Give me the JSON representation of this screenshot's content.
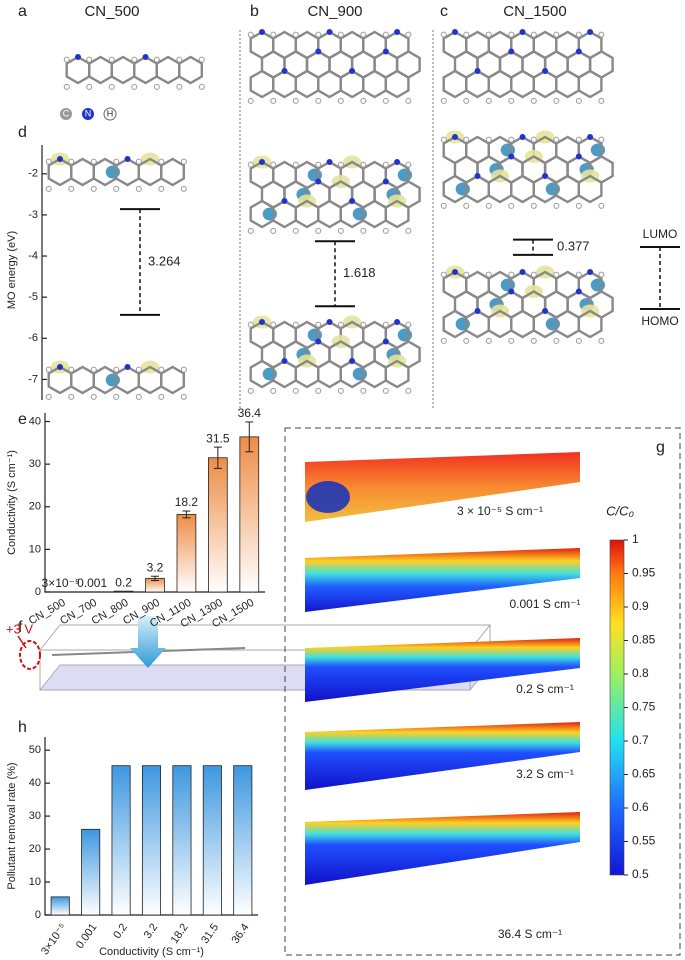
{
  "panels": {
    "a": {
      "label": "a",
      "title": "CN_500"
    },
    "b": {
      "label": "b",
      "title": "CN_900"
    },
    "c": {
      "label": "c",
      "title": "CN_1500"
    },
    "f": {
      "label": "f",
      "annotation": "+3 V"
    },
    "g": {
      "label": "g",
      "captions": [
        "3 × 10⁻⁵ S cm⁻¹",
        "0.001 S cm⁻¹",
        "0.2 S cm⁻¹",
        "3.2 S cm⁻¹",
        "36.4 S cm⁻¹"
      ]
    }
  },
  "atom_legend": [
    "C",
    "N",
    "H"
  ],
  "chart_data": [
    {
      "type": "levels",
      "label": "d",
      "ylabel": "MO energy (eV)",
      "ylim": [
        -7.5,
        -1.3
      ],
      "yticks": [
        -2,
        -3,
        -4,
        -5,
        -6,
        -7
      ],
      "systems": [
        {
          "lumo": -2.86,
          "homo": -5.43,
          "gap": 3.264
        },
        {
          "lumo": -3.64,
          "homo": -5.22,
          "gap": 1.618
        },
        {
          "lumo": -3.6,
          "homo": -3.97,
          "gap": 0.377
        }
      ],
      "legend": [
        "LUMO",
        "HOMO"
      ]
    },
    {
      "type": "bar",
      "label": "e",
      "ylabel": "Conductivity (S cm⁻¹)",
      "categories": [
        "CN_500",
        "CN_700",
        "CN_800",
        "CN_900",
        "CN_1100",
        "CN_1300",
        "CN_1500"
      ],
      "values": [
        3e-05,
        0.001,
        0.2,
        3.2,
        18.2,
        31.5,
        36.4
      ],
      "value_labels": [
        "3×10⁻⁵",
        "0.001",
        "0.2",
        "3.2",
        "18.2",
        "31.5",
        "36.4"
      ],
      "errors": [
        0,
        0,
        0,
        0.5,
        0.8,
        2.5,
        3.5
      ],
      "color": "#ee8c45",
      "ylim": [
        0,
        42
      ],
      "yticks": [
        0,
        10,
        20,
        30,
        40
      ]
    },
    {
      "type": "bar",
      "label": "h",
      "ylabel": "Pollutant removal rate (%)",
      "xlabel": "Conductivity (S cm⁻¹)",
      "categories": [
        "3×10⁻⁵",
        "0.001",
        "0.2",
        "3.2",
        "18.2",
        "31.5",
        "36.4"
      ],
      "values": [
        5.5,
        26,
        45.3,
        45.3,
        45.3,
        45.3,
        45.3
      ],
      "color": "#3d97e0",
      "ylim": [
        0,
        54
      ],
      "yticks": [
        0,
        10,
        20,
        30,
        40,
        50
      ]
    },
    {
      "type": "colorbar",
      "title": "C/C₀",
      "ylim": [
        0.5,
        1
      ],
      "yticks": [
        0.5,
        0.55,
        0.6,
        0.65,
        0.7,
        0.75,
        0.8,
        0.85,
        0.9,
        0.95,
        1
      ]
    }
  ]
}
